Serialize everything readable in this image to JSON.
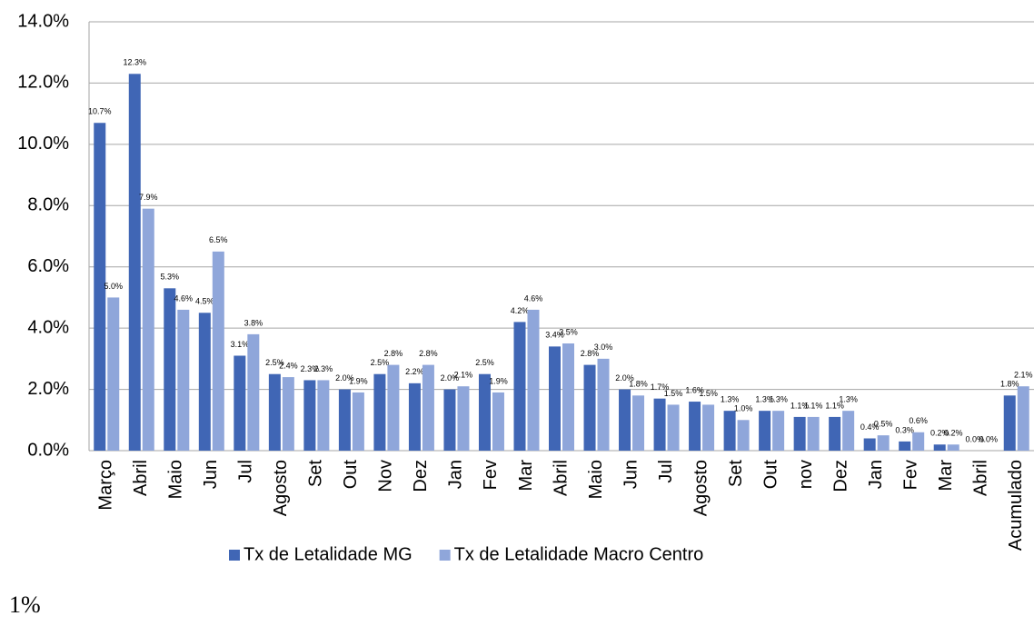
{
  "chart_data": {
    "type": "bar",
    "categories": [
      "Março",
      "Abril",
      "Maio",
      "Jun",
      "Jul",
      "Agosto",
      "Set",
      "Out",
      "Nov",
      "Dez",
      "Jan",
      "Fev",
      "Mar",
      "Abril",
      "Maio",
      "Jun",
      "Jul",
      "Agosto",
      "Set",
      "Out",
      "nov",
      "Dez",
      "Jan",
      "Fev",
      "Mar",
      "Abril",
      "Acumulado"
    ],
    "series": [
      {
        "name": "Tx de Letalidade MG",
        "color": "#4066b5",
        "values": [
          10.7,
          12.3,
          5.3,
          4.5,
          3.1,
          2.5,
          2.3,
          2.0,
          2.5,
          2.2,
          2.0,
          2.5,
          4.2,
          3.4,
          2.8,
          2.0,
          1.7,
          1.6,
          1.3,
          1.3,
          1.1,
          1.1,
          0.4,
          0.3,
          0.2,
          0.0,
          1.8
        ],
        "value_labels": [
          "10.7%",
          "12.3%",
          "5.3%",
          "4.5%",
          "3.1%",
          "2.5%",
          "2.3%",
          "2.0%",
          "2.5%",
          "2.2%",
          "2.0%",
          "2.5%",
          "4.2%",
          "3.4%",
          "2.8%",
          "2.0%",
          "1.7%",
          "1.6%",
          "1.3%",
          "1.3%",
          "1.1%",
          "1.1%",
          "0.4%",
          "0.3%",
          "0.2%",
          "0.0%",
          "1.8%"
        ]
      },
      {
        "name": "Tx de Letalidade Macro Centro",
        "color": "#8fa6da",
        "values": [
          5.0,
          7.9,
          4.6,
          6.5,
          3.8,
          2.4,
          2.3,
          1.9,
          2.8,
          2.8,
          2.1,
          1.9,
          4.6,
          3.5,
          3.0,
          1.8,
          1.5,
          1.5,
          1.0,
          1.3,
          1.1,
          1.3,
          0.5,
          0.6,
          0.2,
          0.0,
          2.1
        ],
        "value_labels": [
          "5.0%",
          "7.9%",
          "4.6%",
          "6.5%",
          "3.8%",
          "2.4%",
          "2.3%",
          "1.9%",
          "2.8%",
          "2.8%",
          "2.1%",
          "1.9%",
          "4.6%",
          "3.5%",
          "3.0%",
          "1.8%",
          "1.5%",
          "1.5%",
          "1.0%",
          "1.3%",
          "1.1%",
          "1.3%",
          "0.5%",
          "0.6%",
          "0.2%",
          "0.0%",
          "2.1%"
        ]
      }
    ],
    "ylim": [
      0,
      14
    ],
    "yticks": [
      {
        "value": 0,
        "label": "0.0%"
      },
      {
        "value": 2,
        "label": "2.0%"
      },
      {
        "value": 4,
        "label": "4.0%"
      },
      {
        "value": 6,
        "label": "6.0%"
      },
      {
        "value": 8,
        "label": "8.0%"
      },
      {
        "value": 10,
        "label": "10.0%"
      },
      {
        "value": 12,
        "label": "12.0%"
      },
      {
        "value": 14,
        "label": "14.0%"
      }
    ],
    "grid": true,
    "legend": "bottom"
  },
  "caption": "1%"
}
